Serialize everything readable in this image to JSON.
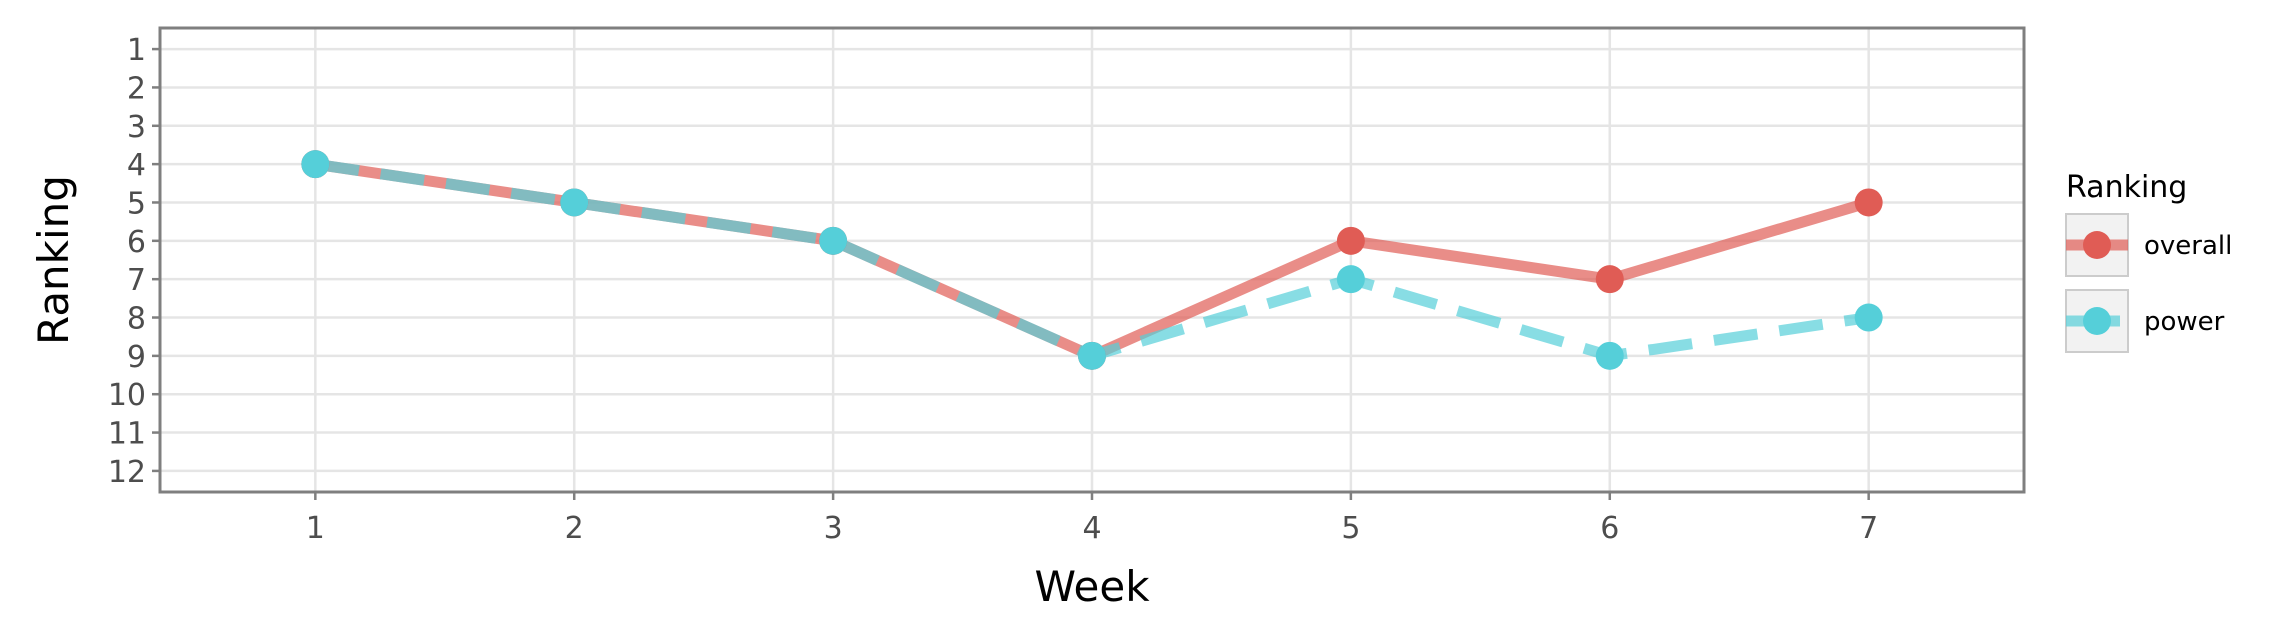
{
  "chart_data": {
    "type": "line",
    "xlabel": "Week",
    "ylabel": "Ranking",
    "x": [
      1,
      2,
      3,
      4,
      5,
      6,
      7
    ],
    "xlim": [
      0.4,
      7.6
    ],
    "ylim": [
      12.55,
      0.45
    ],
    "y_reversed": true,
    "y_ticks": [
      1,
      2,
      3,
      4,
      5,
      6,
      7,
      8,
      9,
      10,
      11,
      12
    ],
    "grid": true,
    "legend": {
      "title": "Ranking",
      "placement": "right"
    },
    "series": [
      {
        "name": "overall",
        "values": [
          4,
          5,
          6,
          9,
          6,
          7,
          5
        ],
        "color": "#e05c55",
        "line_style": "solid"
      },
      {
        "name": "power",
        "values": [
          4,
          5,
          6,
          9,
          7,
          9,
          8
        ],
        "color": "#55cfd9",
        "line_style": "dashed"
      }
    ]
  }
}
